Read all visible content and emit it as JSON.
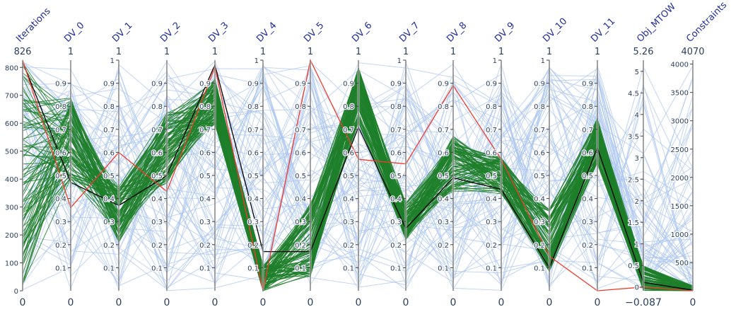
{
  "chart_data": {
    "type": "parallel_coordinates",
    "dimensions": [
      {
        "label": "Iterations",
        "range": [
          0,
          826
        ],
        "tickvals": [
          0,
          100,
          200,
          300,
          400,
          500,
          600,
          700,
          800
        ],
        "ticktext": [
          "0",
          "100",
          "200",
          "300",
          "400",
          "500",
          "600",
          "700",
          "800"
        ],
        "range_top_text": "826",
        "range_bottom_text": "0"
      },
      {
        "label": "DV_0",
        "range": [
          0,
          1
        ],
        "tickvals": [
          0.1,
          0.2,
          0.3,
          0.4,
          0.5,
          0.6,
          0.7,
          0.8,
          0.9
        ],
        "ticktext": [
          "0.1",
          "0.2",
          "0.3",
          "0.4",
          "0.5",
          "0.6",
          "0.7",
          "0.8",
          "0.9"
        ],
        "range_top_text": "1",
        "range_bottom_text": "0"
      },
      {
        "label": "DV_1",
        "range": [
          0,
          1
        ],
        "tickvals": [
          0.1,
          0.2,
          0.3,
          0.4,
          0.5,
          0.6,
          0.7,
          0.8,
          0.9,
          1
        ],
        "ticktext": [
          "0.1",
          "0.2",
          "0.3",
          "0.4",
          "0.5",
          "0.6",
          "0.7",
          "0.8",
          "0.9",
          "1"
        ],
        "range_top_text": "1",
        "range_bottom_text": "0"
      },
      {
        "label": "DV_2",
        "range": [
          0,
          1
        ],
        "tickvals": [
          0.1,
          0.2,
          0.3,
          0.4,
          0.5,
          0.6,
          0.7,
          0.8,
          0.9
        ],
        "ticktext": [
          "0.1",
          "0.2",
          "0.3",
          "0.4",
          "0.5",
          "0.6",
          "0.7",
          "0.8",
          "0.9"
        ],
        "range_top_text": "1",
        "range_bottom_text": "0"
      },
      {
        "label": "DV_3",
        "range": [
          0,
          1
        ],
        "tickvals": [
          0.1,
          0.2,
          0.3,
          0.4,
          0.5,
          0.6,
          0.7,
          0.8,
          0.9
        ],
        "ticktext": [
          "0.1",
          "0.2",
          "0.3",
          "0.4",
          "0.5",
          "0.6",
          "0.7",
          "0.8",
          "0.9"
        ],
        "range_top_text": "1",
        "range_bottom_text": "0"
      },
      {
        "label": "DV_4",
        "range": [
          0,
          1
        ],
        "tickvals": [
          0.1,
          0.2,
          0.3,
          0.4,
          0.5,
          0.6,
          0.7,
          0.8,
          0.9,
          1
        ],
        "ticktext": [
          "0.1",
          "0.2",
          "0.3",
          "0.4",
          "0.5",
          "0.6",
          "0.7",
          "0.8",
          "0.9",
          "1"
        ],
        "range_top_text": "1",
        "range_bottom_text": "0"
      },
      {
        "label": "DV_5",
        "range": [
          0,
          1
        ],
        "tickvals": [
          0.1,
          0.2,
          0.3,
          0.4,
          0.5,
          0.6,
          0.7,
          0.8,
          0.9
        ],
        "ticktext": [
          "0.1",
          "0.2",
          "0.3",
          "0.4",
          "0.5",
          "0.6",
          "0.7",
          "0.8",
          "0.9"
        ],
        "range_top_text": "1",
        "range_bottom_text": "0"
      },
      {
        "label": "DV_6",
        "range": [
          0,
          1
        ],
        "tickvals": [
          0.1,
          0.2,
          0.3,
          0.4,
          0.5,
          0.6,
          0.7,
          0.8,
          0.9
        ],
        "ticktext": [
          "0.1",
          "0.2",
          "0.3",
          "0.4",
          "0.5",
          "0.6",
          "0.7",
          "0.8",
          "0.9"
        ],
        "range_top_text": "1",
        "range_bottom_text": "0"
      },
      {
        "label": "DV_7",
        "range": [
          0,
          1
        ],
        "tickvals": [
          0.1,
          0.2,
          0.3,
          0.4,
          0.5,
          0.6,
          0.7,
          0.8,
          0.9,
          1
        ],
        "ticktext": [
          "0.1",
          "0.2",
          "0.3",
          "0.4",
          "0.5",
          "0.6",
          "0.7",
          "0.8",
          "0.9",
          "1"
        ],
        "range_top_text": "1",
        "range_bottom_text": "0"
      },
      {
        "label": "DV_8",
        "range": [
          0,
          1
        ],
        "tickvals": [
          0.1,
          0.2,
          0.3,
          0.4,
          0.5,
          0.6,
          0.7,
          0.8,
          0.9
        ],
        "ticktext": [
          "0.1",
          "0.2",
          "0.3",
          "0.4",
          "0.5",
          "0.6",
          "0.7",
          "0.8",
          "0.9"
        ],
        "range_top_text": "1",
        "range_bottom_text": "0"
      },
      {
        "label": "DV_9",
        "range": [
          0,
          1
        ],
        "tickvals": [
          0.1,
          0.2,
          0.3,
          0.4,
          0.5,
          0.6,
          0.7,
          0.8,
          0.9,
          1
        ],
        "ticktext": [
          "0.1",
          "0.2",
          "0.3",
          "0.4",
          "0.5",
          "0.6",
          "0.7",
          "0.8",
          "0.9",
          "1"
        ],
        "range_top_text": "1",
        "range_bottom_text": "0"
      },
      {
        "label": "DV_10",
        "range": [
          0,
          1
        ],
        "tickvals": [
          0.1,
          0.2,
          0.3,
          0.4,
          0.5,
          0.6,
          0.7,
          0.8,
          0.9,
          1
        ],
        "ticktext": [
          "0.1",
          "0.2",
          "0.3",
          "0.4",
          "0.5",
          "0.6",
          "0.7",
          "0.8",
          "0.9",
          "1"
        ],
        "range_top_text": "1",
        "range_bottom_text": "0"
      },
      {
        "label": "DV_11",
        "range": [
          0,
          1
        ],
        "tickvals": [
          0.1,
          0.2,
          0.3,
          0.4,
          0.5,
          0.6,
          0.7,
          0.8,
          0.9
        ],
        "ticktext": [
          "0.1",
          "0.2",
          "0.3",
          "0.4",
          "0.5",
          "0.6",
          "0.7",
          "0.8",
          "0.9"
        ],
        "range_top_text": "1",
        "range_bottom_text": "0"
      },
      {
        "label": "Obj_MTOW",
        "range": [
          -0.087,
          5.26
        ],
        "tickvals": [
          0,
          0.5,
          1,
          1.5,
          2,
          2.5,
          3,
          3.5,
          4,
          4.5,
          5
        ],
        "ticktext": [
          "0",
          "0.5",
          "1",
          "1.5",
          "2",
          "2.5",
          "3",
          "3.5",
          "4",
          "4.5",
          "5"
        ],
        "range_top_text": "5.26",
        "range_bottom_text": "−0.087"
      },
      {
        "label": "Constraints",
        "range": [
          0,
          4070
        ],
        "tickvals": [
          500,
          1000,
          1500,
          2000,
          2500,
          3000,
          3500,
          4000
        ],
        "ticktext": [
          "500",
          "1000",
          "1500",
          "2000",
          "2500",
          "3000",
          "3500",
          "4000"
        ],
        "range_top_text": "4070",
        "range_bottom_text": "0"
      }
    ],
    "series": [
      {
        "role": "explored",
        "color": "#aec7ef",
        "count": 70
      },
      {
        "role": "converged",
        "color": "#1f7f2a",
        "count": 90
      },
      {
        "role": "best",
        "color": "#000000",
        "values": [
          820,
          0.47,
          0.37,
          0.5,
          0.98,
          0.17,
          0.17,
          0.71,
          0.27,
          0.49,
          0.44,
          0.1,
          0.62,
          0.11,
          10
        ]
      },
      {
        "role": "initial",
        "color": "#ef3b2c",
        "values": [
          826,
          0.36,
          0.6,
          0.43,
          0.97,
          0.0,
          1.0,
          0.57,
          0.55,
          0.89,
          0.57,
          0.15,
          0.0,
          0.0,
          0
        ]
      }
    ],
    "grid": false,
    "legend": "none",
    "label_color": "#2a3f5f",
    "axis_color": "#444444"
  }
}
